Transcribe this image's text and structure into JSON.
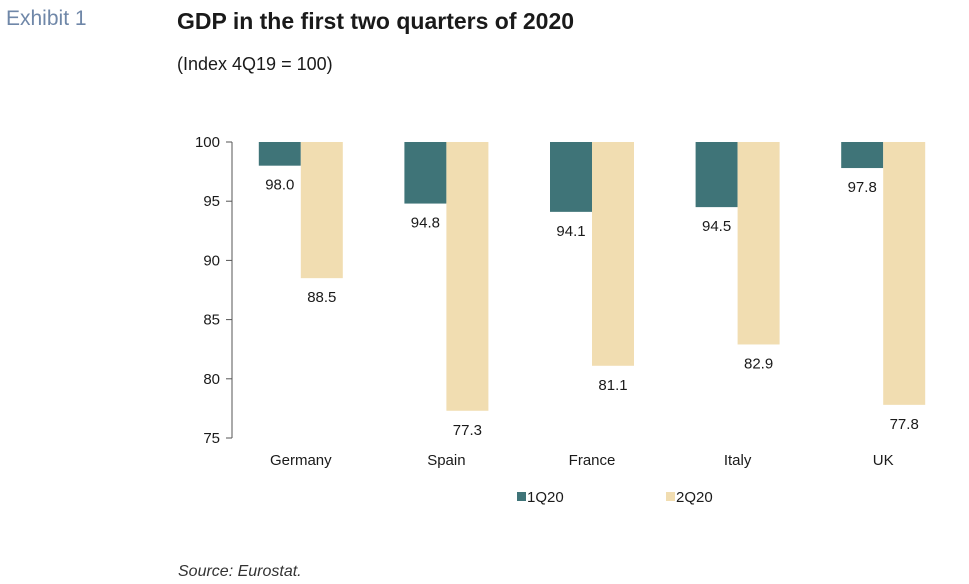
{
  "header": {
    "exhibit_label": "Exhibit 1",
    "title": "GDP in the first two quarters of 2020",
    "subtitle": "(Index 4Q19 = 100)"
  },
  "footer": {
    "source": "Source: Eurostat."
  },
  "chart_data": {
    "type": "bar",
    "categories": [
      "Germany",
      "Spain",
      "France",
      "Italy",
      "UK"
    ],
    "series": [
      {
        "name": "1Q20",
        "color": "#3f7478",
        "values": [
          98.0,
          94.8,
          94.1,
          94.5,
          97.8
        ]
      },
      {
        "name": "2Q20",
        "color": "#f1ddb1",
        "values": [
          88.5,
          77.3,
          81.1,
          82.9,
          77.8
        ]
      }
    ],
    "baseline": 100,
    "ylim": [
      75,
      100
    ],
    "yticks": [
      100,
      95,
      90,
      85,
      80,
      75
    ],
    "grid": false,
    "legend_position": "bottom-center"
  }
}
